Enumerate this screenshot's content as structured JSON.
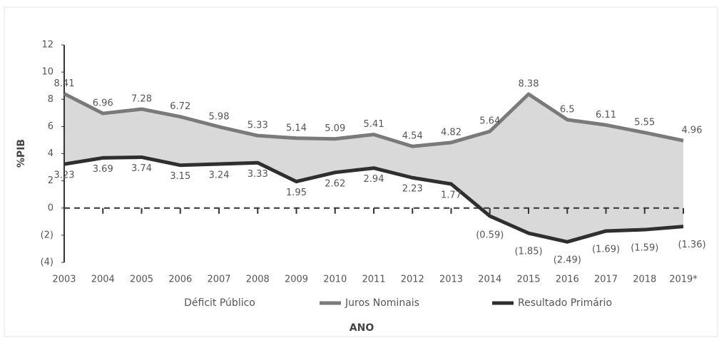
{
  "chart_data": {
    "type": "line",
    "x_label": "ANO",
    "y_label": "%PIB",
    "categories": [
      "2003",
      "2004",
      "2005",
      "2006",
      "2007",
      "2008",
      "2009",
      "2010",
      "2011",
      "2012",
      "2013",
      "2014",
      "2015",
      "2016",
      "2017",
      "2018",
      "2019*"
    ],
    "area": {
      "name": "Déficit Público",
      "color": "#d9d9d9"
    },
    "series": [
      {
        "name": "Juros Nominais",
        "color": "#7a7a7a",
        "values": [
          8.41,
          6.96,
          7.28,
          6.72,
          5.98,
          5.33,
          5.14,
          5.09,
          5.41,
          4.54,
          4.82,
          5.64,
          8.38,
          6.5,
          6.11,
          5.55,
          4.96
        ]
      },
      {
        "name": "Resultado Primário",
        "color": "#2f2f2f",
        "values": [
          3.23,
          3.69,
          3.74,
          3.15,
          3.24,
          3.33,
          1.95,
          2.62,
          2.94,
          2.23,
          1.77,
          -0.59,
          -1.85,
          -2.49,
          -1.69,
          -1.59,
          -1.36
        ],
        "value_labels": [
          "3.23",
          "3.69",
          "3.74",
          "3.15",
          "3.24",
          "3.33",
          "1.95",
          "2.62",
          "2.94",
          "2.23",
          "1.77",
          "(0.59)",
          "(1.85)",
          "(2.49)",
          "(1.69)",
          "(1.59)",
          "(1.36)"
        ]
      }
    ],
    "ylim": [
      -4,
      12
    ],
    "yticks": [
      {
        "value": -4,
        "label": "(4)"
      },
      {
        "value": -2,
        "label": "(2)"
      },
      0,
      2,
      4,
      6,
      8,
      10,
      12
    ],
    "zero_line": true
  }
}
